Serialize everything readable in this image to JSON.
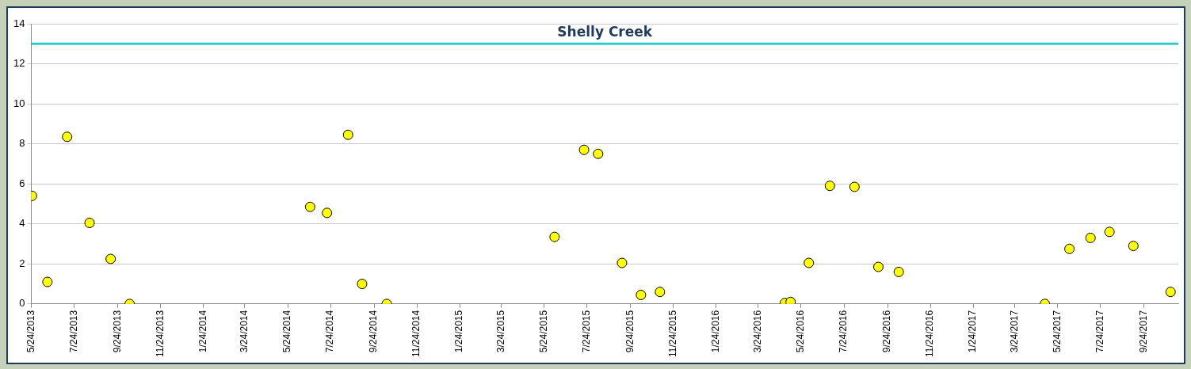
{
  "chart_data": {
    "type": "scatter",
    "title": "Shelly Creek",
    "x": [
      "2013-05-25",
      "2013-06-16",
      "2013-07-14",
      "2013-08-15",
      "2013-09-14",
      "2013-10-11",
      "2014-06-25",
      "2014-07-19",
      "2014-08-18",
      "2014-09-07",
      "2014-10-12",
      "2015-06-08",
      "2015-07-20",
      "2015-08-09",
      "2015-09-12",
      "2015-10-09",
      "2015-11-05",
      "2016-05-01",
      "2016-05-09",
      "2016-06-04",
      "2016-07-04",
      "2016-08-08",
      "2016-09-11",
      "2016-10-10",
      "2017-05-06",
      "2017-06-10",
      "2017-07-10",
      "2017-08-06",
      "2017-09-09",
      "2017-11-01"
    ],
    "series": [
      {
        "color": "#ffff00",
        "values": [
          5.4,
          1.1,
          8.35,
          4.05,
          2.25,
          0,
          4.85,
          4.55,
          8.45,
          1,
          0,
          3.35,
          7.7,
          7.5,
          2.05,
          0.45,
          0.6,
          0.05,
          0.1,
          2.05,
          5.9,
          5.85,
          1.85,
          1.6,
          0,
          2.75,
          3.3,
          3.6,
          2.9,
          0.6
        ]
      }
    ],
    "xlim": [
      "2013-05-24",
      "2017-11-12"
    ],
    "xticks": [
      {
        "value": "2013-05-24",
        "label": "5/24/2013"
      },
      {
        "value": "2013-07-24",
        "label": "7/24/2013"
      },
      {
        "value": "2013-09-24",
        "label": "9/24/2013"
      },
      {
        "value": "2013-11-24",
        "label": "11/24/2013"
      },
      {
        "value": "2014-01-24",
        "label": "1/24/2014"
      },
      {
        "value": "2014-03-24",
        "label": "3/24/2014"
      },
      {
        "value": "2014-05-24",
        "label": "5/24/2014"
      },
      {
        "value": "2014-07-24",
        "label": "7/24/2014"
      },
      {
        "value": "2014-09-24",
        "label": "9/24/2014"
      },
      {
        "value": "2014-11-24",
        "label": "11/24/2014"
      },
      {
        "value": "2015-01-24",
        "label": "1/24/2015"
      },
      {
        "value": "2015-03-24",
        "label": "3/24/2015"
      },
      {
        "value": "2015-05-24",
        "label": "5/24/2015"
      },
      {
        "value": "2015-07-24",
        "label": "7/24/2015"
      },
      {
        "value": "2015-09-24",
        "label": "9/24/2015"
      },
      {
        "value": "2015-11-24",
        "label": "11/24/2015"
      },
      {
        "value": "2016-01-24",
        "label": "1/24/2016"
      },
      {
        "value": "2016-03-24",
        "label": "3/24/2016"
      },
      {
        "value": "2016-05-24",
        "label": "5/24/2016"
      },
      {
        "value": "2016-07-24",
        "label": "7/24/2016"
      },
      {
        "value": "2016-09-24",
        "label": "9/24/2016"
      },
      {
        "value": "2016-11-24",
        "label": "11/24/2016"
      },
      {
        "value": "2017-01-24",
        "label": "1/24/2017"
      },
      {
        "value": "2017-03-24",
        "label": "3/24/2017"
      },
      {
        "value": "2017-05-24",
        "label": "5/24/2017"
      },
      {
        "value": "2017-07-24",
        "label": "7/24/2017"
      },
      {
        "value": "2017-09-24",
        "label": "9/24/2017"
      }
    ],
    "ylim": [
      0,
      14
    ],
    "yticks": [
      0,
      2,
      4,
      6,
      8,
      10,
      12,
      14
    ],
    "ref_lines": [
      {
        "axis": "y",
        "value": 13,
        "color": "#33cccc"
      }
    ],
    "grid": "y",
    "marker": "circle",
    "legend": false
  }
}
